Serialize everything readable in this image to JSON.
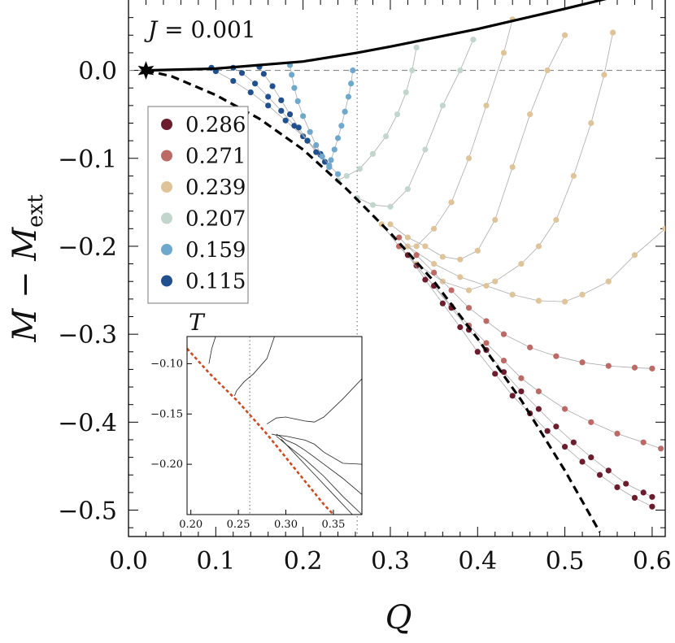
{
  "chart_data": {
    "type": "scatter",
    "xlabel": "Q",
    "ylabel": "M − M_ext",
    "ylabel_main": "M − M",
    "ylabel_sub": "ext",
    "xlim": [
      0.0,
      0.615
    ],
    "ylim": [
      -0.53,
      0.08
    ],
    "x_ticks": [
      0.0,
      0.1,
      0.2,
      0.3,
      0.4,
      0.5,
      0.6
    ],
    "x_tick_labels": [
      "0.0",
      "0.1",
      "0.2",
      "0.3",
      "0.4",
      "0.5",
      "0.6"
    ],
    "y_ticks": [
      0.0,
      -0.1,
      -0.2,
      -0.3,
      -0.4,
      -0.5
    ],
    "y_tick_labels": [
      "0.0",
      "−0.1",
      "−0.2",
      "−0.3",
      "−0.4",
      "−0.5"
    ],
    "annotation_lhs": "J",
    "annotation_rhs": " = 0.001",
    "vertical_reference_x": 0.262,
    "extremal_point": {
      "x": 0.02,
      "y": 0.0
    },
    "legend": {
      "title": "T",
      "placement": "upper-left",
      "entries": [
        {
          "label": "0.286",
          "color": "#6b1d2e"
        },
        {
          "label": "0.271",
          "color": "#bb6a66"
        },
        {
          "label": "0.239",
          "color": "#dfc49a"
        },
        {
          "label": "0.207",
          "color": "#c3d6cd"
        },
        {
          "label": "0.159",
          "color": "#6ea8cd"
        },
        {
          "label": "0.115",
          "color": "#21508f"
        }
      ]
    },
    "upper_branch": {
      "style": "solid",
      "color": "#000000",
      "x": [
        0.02,
        0.1,
        0.2,
        0.262,
        0.3,
        0.4,
        0.5,
        0.55
      ],
      "y": [
        0.0,
        0.002,
        0.01,
        0.02,
        0.027,
        0.047,
        0.07,
        0.082
      ]
    },
    "lower_branch": {
      "style": "dashed",
      "color": "#000000",
      "x": [
        0.02,
        0.05,
        0.1,
        0.15,
        0.2,
        0.25,
        0.3,
        0.35,
        0.4,
        0.45,
        0.5,
        0.54
      ],
      "y": [
        0.0,
        -0.007,
        -0.028,
        -0.055,
        -0.09,
        -0.135,
        -0.185,
        -0.24,
        -0.305,
        -0.375,
        -0.455,
        -0.525
      ]
    },
    "series": [
      {
        "color": "#21508f",
        "x": [
          0.095,
          0.1,
          0.12,
          0.14,
          0.16,
          0.18,
          0.2,
          0.22
        ],
        "y": [
          0.003,
          -0.001,
          -0.012,
          -0.025,
          -0.04,
          -0.057,
          -0.075,
          -0.095
        ]
      },
      {
        "color": "#21508f",
        "x": [
          0.12,
          0.13,
          0.145,
          0.16,
          0.175,
          0.19,
          0.205,
          0.22
        ],
        "y": [
          0.003,
          -0.003,
          -0.015,
          -0.03,
          -0.046,
          -0.063,
          -0.08,
          -0.096
        ]
      },
      {
        "color": "#21508f",
        "x": [
          0.15,
          0.155,
          0.165,
          0.175,
          0.185,
          0.195,
          0.205,
          0.215,
          0.225
        ],
        "y": [
          0.004,
          -0.004,
          -0.018,
          -0.034,
          -0.05,
          -0.065,
          -0.08,
          -0.093,
          -0.104
        ]
      },
      {
        "color": "#6ea8cd",
        "x": [
          0.185,
          0.187,
          0.19,
          0.194,
          0.2,
          0.208,
          0.215,
          0.222,
          0.23,
          0.24
        ],
        "y": [
          0.006,
          -0.005,
          -0.02,
          -0.035,
          -0.052,
          -0.07,
          -0.085,
          -0.098,
          -0.108,
          -0.118
        ]
      },
      {
        "color": "#6ea8cd",
        "x": [
          0.257,
          0.255,
          0.252,
          0.248,
          0.244,
          0.24,
          0.236,
          0.232,
          0.23
        ],
        "y": [
          0.0,
          -0.015,
          -0.03,
          -0.047,
          -0.063,
          -0.077,
          -0.09,
          -0.102,
          -0.11
        ]
      },
      {
        "color": "#c3d6cd",
        "x": [
          0.33,
          0.325,
          0.318,
          0.308,
          0.295,
          0.28,
          0.265,
          0.25,
          0.24
        ],
        "y": [
          0.026,
          0.0,
          -0.025,
          -0.05,
          -0.075,
          -0.095,
          -0.112,
          -0.12,
          -0.125
        ]
      },
      {
        "color": "#c3d6cd",
        "x": [
          0.395,
          0.38,
          0.36,
          0.34,
          0.32,
          0.3,
          0.28,
          0.262
        ],
        "y": [
          0.035,
          0.0,
          -0.04,
          -0.09,
          -0.135,
          -0.155,
          -0.153,
          -0.145
        ]
      },
      {
        "color": "#dfc49a",
        "x": [
          0.44,
          0.43,
          0.41,
          0.39,
          0.37,
          0.35,
          0.33,
          0.31,
          0.29
        ],
        "y": [
          0.058,
          0.02,
          -0.04,
          -0.1,
          -0.15,
          -0.18,
          -0.2,
          -0.2,
          -0.175
        ]
      },
      {
        "color": "#dfc49a",
        "x": [
          0.5,
          0.48,
          0.46,
          0.44,
          0.42,
          0.4,
          0.38,
          0.36,
          0.34,
          0.32,
          0.3
        ],
        "y": [
          0.04,
          0.0,
          -0.05,
          -0.11,
          -0.17,
          -0.205,
          -0.215,
          -0.212,
          -0.2,
          -0.19,
          -0.175
        ]
      },
      {
        "color": "#dfc49a",
        "x": [
          0.555,
          0.545,
          0.53,
          0.51,
          0.49,
          0.47,
          0.45,
          0.42,
          0.39,
          0.36,
          0.33,
          0.31
        ],
        "y": [
          0.043,
          -0.005,
          -0.06,
          -0.12,
          -0.17,
          -0.2,
          -0.22,
          -0.24,
          -0.25,
          -0.24,
          -0.22,
          -0.2
        ]
      },
      {
        "color": "#dfc49a",
        "x": [
          0.615,
          0.58,
          0.55,
          0.52,
          0.5,
          0.47,
          0.44,
          0.41,
          0.38,
          0.35,
          0.32
        ],
        "y": [
          -0.18,
          -0.21,
          -0.24,
          -0.255,
          -0.263,
          -0.262,
          -0.255,
          -0.245,
          -0.235,
          -0.22,
          -0.2
        ]
      },
      {
        "color": "#bb6a66",
        "x": [
          0.31,
          0.33,
          0.35,
          0.37,
          0.39,
          0.41,
          0.43,
          0.46,
          0.49,
          0.52,
          0.55,
          0.58,
          0.6
        ],
        "y": [
          -0.19,
          -0.21,
          -0.23,
          -0.25,
          -0.27,
          -0.285,
          -0.3,
          -0.315,
          -0.325,
          -0.332,
          -0.336,
          -0.338,
          -0.339
        ]
      },
      {
        "color": "#bb6a66",
        "x": [
          0.31,
          0.33,
          0.35,
          0.37,
          0.39,
          0.41,
          0.43,
          0.45,
          0.47,
          0.5,
          0.53,
          0.56,
          0.59,
          0.61
        ],
        "y": [
          -0.2,
          -0.222,
          -0.245,
          -0.268,
          -0.29,
          -0.31,
          -0.33,
          -0.35,
          -0.365,
          -0.385,
          -0.4,
          -0.413,
          -0.423,
          -0.43
        ]
      },
      {
        "color": "#6b1d2e",
        "x": [
          0.33,
          0.35,
          0.37,
          0.39,
          0.41,
          0.43,
          0.45,
          0.47,
          0.49,
          0.51,
          0.53,
          0.55,
          0.57,
          0.59,
          0.6
        ],
        "y": [
          -0.222,
          -0.245,
          -0.27,
          -0.295,
          -0.318,
          -0.343,
          -0.365,
          -0.385,
          -0.405,
          -0.423,
          -0.44,
          -0.455,
          -0.47,
          -0.48,
          -0.485
        ]
      },
      {
        "color": "#6b1d2e",
        "x": [
          0.32,
          0.34,
          0.36,
          0.38,
          0.4,
          0.42,
          0.44,
          0.46,
          0.48,
          0.5,
          0.52,
          0.54,
          0.56,
          0.58,
          0.6
        ],
        "y": [
          -0.21,
          -0.238,
          -0.265,
          -0.292,
          -0.32,
          -0.345,
          -0.37,
          -0.39,
          -0.41,
          -0.428,
          -0.445,
          -0.46,
          -0.474,
          -0.486,
          -0.496
        ]
      }
    ],
    "inset": {
      "xlim": [
        0.196,
        0.38
      ],
      "ylim": [
        -0.25,
        -0.073
      ],
      "x_ticks": [
        0.2,
        0.25,
        0.3,
        0.35
      ],
      "x_tick_labels": [
        "0.20",
        "0.25",
        "0.30",
        "0.35"
      ],
      "y_ticks": [
        -0.1,
        -0.15,
        -0.2
      ],
      "y_tick_labels": [
        "−0.10",
        "−0.15",
        "−0.20"
      ],
      "vertical_reference_x": 0.262,
      "reference_line": {
        "style": "dashed",
        "color": "#cc4a22",
        "x": [
          0.196,
          0.22,
          0.25,
          0.28,
          0.31,
          0.34,
          0.355
        ],
        "y": [
          -0.085,
          -0.11,
          -0.138,
          -0.17,
          -0.205,
          -0.24,
          -0.255
        ]
      },
      "curves": [
        {
          "x": [
            0.226,
            0.222,
            0.219
          ],
          "y": [
            -0.073,
            -0.085,
            -0.1
          ]
        },
        {
          "x": [
            0.288,
            0.28,
            0.266,
            0.256,
            0.248,
            0.246
          ],
          "y": [
            -0.073,
            -0.095,
            -0.11,
            -0.118,
            -0.127,
            -0.132
          ]
        },
        {
          "x": [
            0.38,
            0.36,
            0.34,
            0.33,
            0.32,
            0.31,
            0.3,
            0.29,
            0.28
          ],
          "y": [
            -0.115,
            -0.135,
            -0.153,
            -0.158,
            -0.157,
            -0.155,
            -0.153,
            -0.154,
            -0.16
          ]
        },
        {
          "x": [
            0.38,
            0.36,
            0.34,
            0.33,
            0.32,
            0.31,
            0.3,
            0.29,
            0.285
          ],
          "y": [
            -0.2,
            -0.199,
            -0.188,
            -0.18,
            -0.176,
            -0.174,
            -0.172,
            -0.171,
            -0.17
          ]
        },
        {
          "x": [
            0.38,
            0.36,
            0.34,
            0.32,
            0.31,
            0.3,
            0.29
          ],
          "y": [
            -0.23,
            -0.214,
            -0.2,
            -0.186,
            -0.18,
            -0.176,
            -0.17
          ]
        },
        {
          "x": [
            0.38,
            0.36,
            0.34,
            0.32,
            0.3,
            0.29
          ],
          "y": [
            -0.25,
            -0.232,
            -0.212,
            -0.195,
            -0.18,
            -0.172
          ]
        },
        {
          "x": [
            0.37,
            0.35,
            0.33,
            0.31,
            0.295
          ],
          "y": [
            -0.25,
            -0.23,
            -0.21,
            -0.19,
            -0.175
          ]
        }
      ]
    }
  }
}
